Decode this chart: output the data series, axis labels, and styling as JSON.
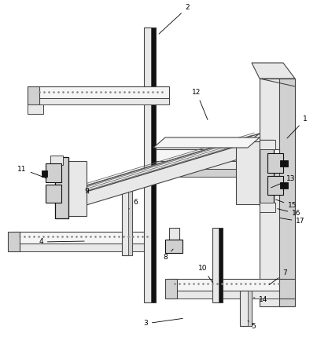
{
  "lc": "#444444",
  "dc": "#111111",
  "fc_light": "#e8e8e8",
  "fc_mid": "#d0d0d0",
  "fc_dark": "#b8b8b8",
  "fc_white": "#f5f5f5"
}
